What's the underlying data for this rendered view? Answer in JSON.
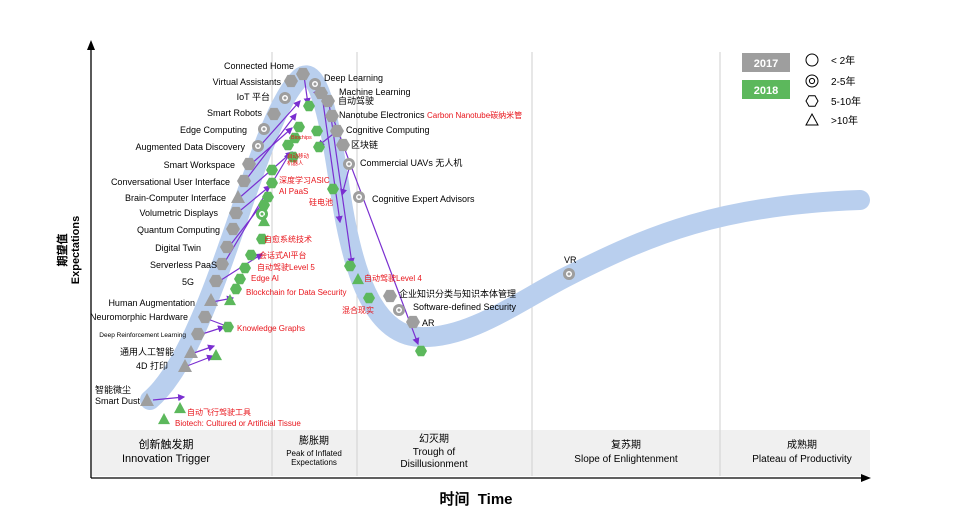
{
  "axes": {
    "y_label_cn": "期望值",
    "y_label_en": "Expectations",
    "x_label": "时间  Time"
  },
  "phases": [
    {
      "cn": "创新触发期",
      "en": "Innovation Trigger"
    },
    {
      "cn": "膨胀期",
      "en": "Peak of Inflated Expectations"
    },
    {
      "cn": "幻灭期",
      "en": "Trough of Disillusionment"
    },
    {
      "cn": "复苏期",
      "en": "Slope of Enlightenment"
    },
    {
      "cn": "成熟期",
      "en": "Plateau of Productivity"
    }
  ],
  "legend": {
    "years": [
      {
        "label": "2017",
        "color": "#9e9e9e"
      },
      {
        "label": "2018",
        "color": "#5cb85c"
      }
    ],
    "maturity": [
      {
        "shape": "circle",
        "label": "< 2年"
      },
      {
        "shape": "target",
        "label": "2-5年"
      },
      {
        "shape": "hexagon",
        "label": "5-10年"
      },
      {
        "shape": "triangle",
        "label": ">10年"
      }
    ]
  },
  "labels_2017": [
    "Connected Home",
    "Virtual Assistants",
    "IoT 平台",
    "Smart Robots",
    "Edge Computing",
    "Augmented Data Discovery",
    "Smart Workspace",
    "Conversational User Interface",
    "Brain-Computer Interface",
    "Volumetric Displays",
    "Quantum Computing",
    "Digital Twin",
    "Serverless PaaS",
    "5G",
    "Human Augmentation",
    "Neuromorphic Hardware",
    "Deep Reinforcement Learning",
    "通用人工智能",
    "4D 打印",
    "智能微尘",
    "Smart Dust",
    "Deep Learning",
    "Machine Learning",
    "自动驾驶",
    "Nanotube Electronics",
    "Cognitive Computing",
    "区块链",
    "Commercial UAVs 无人机",
    "Cognitive Expert Advisors",
    "企业知识分类与知识本体管理",
    "Software-defined Security",
    "AR",
    "VR"
  ],
  "labels_2018": [
    "Carbon Nanotube碳纳米管",
    "Biochips",
    "自动移动",
    "机器人",
    "深度学习ASIC",
    "AI PaaS",
    "硅电池",
    "自愈系统技术",
    "会话式AI平台",
    "自动驾驶Level 5",
    "Edge AI",
    "Blockchain for Data Security",
    "Knowledge Graphs",
    "自动驾驶Level 4",
    "混合现实",
    "自动飞行驾驶工具",
    "Biotech: Cultured or Artificial Tissue"
  ],
  "colors": {
    "curve": "#b9cfee",
    "arrow": "#7a2fd0",
    "red_label": "#e8141b",
    "hex_2017": "#9e9e9e",
    "green_2018": "#5cb85c",
    "phase_band": "#f0f0f0",
    "divider": "#cfcfcf"
  }
}
